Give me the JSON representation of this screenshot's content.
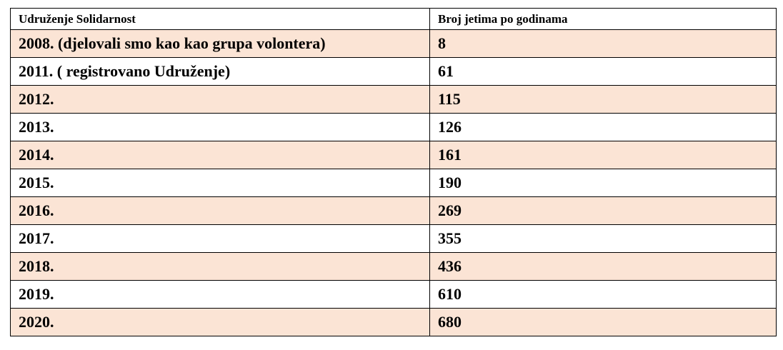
{
  "table": {
    "headers": [
      "Udruženje Solidarnost",
      "Broj jetima po godinama"
    ],
    "row_background_alt": "#fbe4d5",
    "rows": [
      [
        "2008. (djelovali smo kao kao grupa volontera)",
        "8"
      ],
      [
        "2011. ( registrovano Udruženje)",
        "61"
      ],
      [
        "2012.",
        "115"
      ],
      [
        "2013.",
        "126"
      ],
      [
        "2014.",
        "161"
      ],
      [
        "2015.",
        "190"
      ],
      [
        "2016.",
        "269"
      ],
      [
        "2017.",
        "355"
      ],
      [
        "2018.",
        "436"
      ],
      [
        "2019.",
        "610"
      ],
      [
        "2020.",
        "680"
      ]
    ]
  }
}
